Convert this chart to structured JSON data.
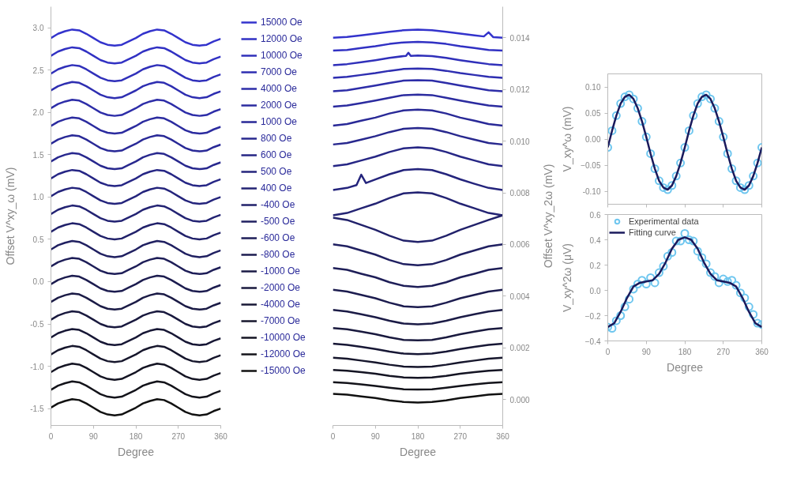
{
  "chart_data": [
    {
      "type": "line",
      "xlabel": "Degree",
      "ylabel": "Offset V^xy_ω (mV)",
      "legend": "right",
      "grid": false,
      "xlim": [
        0,
        360
      ],
      "xticks": [
        0,
        90,
        180,
        270,
        360
      ],
      "ylim": [
        -1.7,
        3.25
      ],
      "yticks": [
        {
          "value": -1.5,
          "label": "-1.5"
        },
        {
          "value": -1,
          "label": "-1.0"
        },
        {
          "value": -0.5,
          "label": "-0.5"
        },
        {
          "value": 0,
          "label": "0.0"
        },
        {
          "value": 0.5,
          "label": "0.5"
        },
        {
          "value": 1,
          "label": "1.0"
        },
        {
          "value": 1.5,
          "label": "1.5"
        },
        {
          "value": 2,
          "label": "2.0"
        },
        {
          "value": 2.5,
          "label": "2.5"
        },
        {
          "value": 3,
          "label": "3.0"
        }
      ],
      "x": [
        0,
        15,
        30,
        45,
        60,
        75,
        90,
        105,
        120,
        135,
        150,
        165,
        180,
        195,
        210,
        225,
        240,
        255,
        270,
        285,
        300,
        315,
        330,
        345,
        360
      ],
      "series": [
        {
          "name": "15000 Oe",
          "color": "#3333cc",
          "values": [
            2.88,
            2.93,
            2.96,
            2.98,
            2.97,
            2.93,
            2.88,
            2.83,
            2.8,
            2.79,
            2.8,
            2.84,
            2.88,
            2.93,
            2.96,
            2.98,
            2.97,
            2.93,
            2.88,
            2.83,
            2.8,
            2.79,
            2.8,
            2.84,
            2.87
          ]
        },
        {
          "name": "12000 Oe",
          "color": "#3131c3",
          "values": [
            2.67,
            2.72,
            2.75,
            2.77,
            2.76,
            2.72,
            2.67,
            2.62,
            2.59,
            2.58,
            2.59,
            2.63,
            2.67,
            2.72,
            2.75,
            2.77,
            2.76,
            2.72,
            2.67,
            2.62,
            2.59,
            2.58,
            2.59,
            2.63,
            2.66
          ]
        },
        {
          "name": "10000 Oe",
          "color": "#3030ba",
          "values": [
            2.46,
            2.51,
            2.54,
            2.56,
            2.55,
            2.51,
            2.46,
            2.41,
            2.38,
            2.37,
            2.38,
            2.42,
            2.46,
            2.51,
            2.54,
            2.56,
            2.55,
            2.51,
            2.46,
            2.41,
            2.38,
            2.37,
            2.38,
            2.42,
            2.45
          ]
        },
        {
          "name": "7000 Oe",
          "color": "#2e2eb1",
          "values": [
            2.26,
            2.31,
            2.34,
            2.36,
            2.35,
            2.31,
            2.26,
            2.21,
            2.18,
            2.17,
            2.18,
            2.22,
            2.26,
            2.31,
            2.34,
            2.36,
            2.35,
            2.31,
            2.26,
            2.21,
            2.18,
            2.17,
            2.18,
            2.22,
            2.25
          ]
        },
        {
          "name": "4000 Oe",
          "color": "#2d2da8",
          "values": [
            2.05,
            2.1,
            2.13,
            2.15,
            2.14,
            2.1,
            2.05,
            2.0,
            1.97,
            1.96,
            1.97,
            2.01,
            2.05,
            2.1,
            2.13,
            2.15,
            2.14,
            2.1,
            2.05,
            2.0,
            1.97,
            1.96,
            1.97,
            2.01,
            2.04
          ]
        },
        {
          "name": "2000 Oe",
          "color": "#2b2b9f",
          "values": [
            1.84,
            1.89,
            1.92,
            1.94,
            1.93,
            1.89,
            1.84,
            1.79,
            1.76,
            1.75,
            1.76,
            1.8,
            1.84,
            1.89,
            1.92,
            1.94,
            1.93,
            1.89,
            1.84,
            1.79,
            1.76,
            1.75,
            1.76,
            1.8,
            1.83
          ]
        },
        {
          "name": "1000 Oe",
          "color": "#292997",
          "values": [
            1.63,
            1.68,
            1.71,
            1.73,
            1.72,
            1.68,
            1.63,
            1.58,
            1.55,
            1.54,
            1.55,
            1.59,
            1.63,
            1.68,
            1.71,
            1.73,
            1.72,
            1.68,
            1.63,
            1.58,
            1.55,
            1.54,
            1.55,
            1.59,
            1.62
          ]
        },
        {
          "name": "800 Oe",
          "color": "#28288e",
          "values": [
            1.42,
            1.47,
            1.5,
            1.52,
            1.51,
            1.47,
            1.42,
            1.37,
            1.34,
            1.33,
            1.34,
            1.38,
            1.42,
            1.47,
            1.5,
            1.52,
            1.51,
            1.47,
            1.42,
            1.37,
            1.34,
            1.33,
            1.34,
            1.38,
            1.41
          ]
        },
        {
          "name": "600 Oe",
          "color": "#262685",
          "values": [
            1.22,
            1.27,
            1.3,
            1.32,
            1.31,
            1.27,
            1.22,
            1.17,
            1.14,
            1.13,
            1.14,
            1.18,
            1.22,
            1.27,
            1.3,
            1.32,
            1.31,
            1.27,
            1.22,
            1.17,
            1.14,
            1.13,
            1.14,
            1.18,
            1.21
          ]
        },
        {
          "name": "500 Oe",
          "color": "#24247c",
          "values": [
            1.01,
            1.06,
            1.09,
            1.11,
            1.1,
            1.06,
            1.01,
            0.96,
            0.93,
            0.92,
            0.93,
            0.97,
            1.01,
            1.06,
            1.09,
            1.11,
            1.1,
            1.06,
            1.01,
            0.96,
            0.93,
            0.92,
            0.93,
            0.97,
            1.0
          ]
        },
        {
          "name": "400 Oe",
          "color": "#232373",
          "values": [
            0.8,
            0.85,
            0.88,
            0.9,
            0.89,
            0.85,
            0.8,
            0.75,
            0.72,
            0.71,
            0.72,
            0.76,
            0.8,
            0.85,
            0.88,
            0.9,
            0.89,
            0.85,
            0.8,
            0.75,
            0.72,
            0.71,
            0.72,
            0.76,
            0.79
          ]
        },
        {
          "name": "-400 Oe",
          "color": "#21216a",
          "values": [
            0.59,
            0.64,
            0.67,
            0.69,
            0.68,
            0.64,
            0.59,
            0.54,
            0.51,
            0.5,
            0.51,
            0.55,
            0.59,
            0.64,
            0.67,
            0.69,
            0.68,
            0.64,
            0.59,
            0.54,
            0.51,
            0.5,
            0.51,
            0.55,
            0.58
          ]
        },
        {
          "name": "-500 Oe",
          "color": "#202061",
          "values": [
            0.38,
            0.43,
            0.46,
            0.48,
            0.47,
            0.43,
            0.38,
            0.33,
            0.3,
            0.29,
            0.3,
            0.34,
            0.38,
            0.43,
            0.46,
            0.48,
            0.47,
            0.43,
            0.38,
            0.33,
            0.3,
            0.29,
            0.3,
            0.34,
            0.37
          ]
        },
        {
          "name": "-600 Oe",
          "color": "#1e1e58",
          "values": [
            0.18,
            0.23,
            0.26,
            0.28,
            0.27,
            0.23,
            0.18,
            0.13,
            0.1,
            0.09,
            0.1,
            0.14,
            0.18,
            0.23,
            0.26,
            0.28,
            0.27,
            0.23,
            0.18,
            0.13,
            0.1,
            0.09,
            0.1,
            0.14,
            0.17
          ]
        },
        {
          "name": "-800 Oe",
          "color": "#1c1c4f",
          "values": [
            -0.03,
            0.02,
            0.05,
            0.07,
            0.06,
            0.02,
            -0.03,
            -0.08,
            -0.11,
            -0.12,
            -0.11,
            -0.07,
            -0.03,
            0.02,
            0.05,
            0.07,
            0.06,
            0.02,
            -0.03,
            -0.08,
            -0.11,
            -0.12,
            -0.11,
            -0.07,
            -0.04
          ]
        },
        {
          "name": "-1000 Oe",
          "color": "#1b1b46",
          "values": [
            -0.24,
            -0.19,
            -0.16,
            -0.14,
            -0.15,
            -0.19,
            -0.24,
            -0.29,
            -0.32,
            -0.33,
            -0.32,
            -0.28,
            -0.24,
            -0.19,
            -0.16,
            -0.14,
            -0.15,
            -0.19,
            -0.24,
            -0.29,
            -0.32,
            -0.33,
            -0.32,
            -0.28,
            -0.25
          ]
        },
        {
          "name": "-2000 Oe",
          "color": "#19193e",
          "values": [
            -0.45,
            -0.4,
            -0.37,
            -0.35,
            -0.36,
            -0.4,
            -0.45,
            -0.5,
            -0.53,
            -0.54,
            -0.53,
            -0.49,
            -0.45,
            -0.4,
            -0.37,
            -0.35,
            -0.36,
            -0.4,
            -0.45,
            -0.5,
            -0.53,
            -0.54,
            -0.53,
            -0.49,
            -0.46
          ]
        },
        {
          "name": "-4000 Oe",
          "color": "#171735",
          "values": [
            -0.66,
            -0.61,
            -0.58,
            -0.56,
            -0.57,
            -0.61,
            -0.66,
            -0.71,
            -0.74,
            -0.75,
            -0.74,
            -0.7,
            -0.66,
            -0.61,
            -0.58,
            -0.56,
            -0.57,
            -0.61,
            -0.66,
            -0.71,
            -0.74,
            -0.75,
            -0.74,
            -0.7,
            -0.67
          ]
        },
        {
          "name": "-7000 Oe",
          "color": "#16162c",
          "values": [
            -0.86,
            -0.81,
            -0.78,
            -0.76,
            -0.77,
            -0.81,
            -0.86,
            -0.91,
            -0.94,
            -0.95,
            -0.94,
            -0.9,
            -0.86,
            -0.81,
            -0.78,
            -0.76,
            -0.77,
            -0.81,
            -0.86,
            -0.91,
            -0.94,
            -0.95,
            -0.94,
            -0.9,
            -0.87
          ]
        },
        {
          "name": "-10000 Oe",
          "color": "#141423",
          "values": [
            -1.07,
            -1.02,
            -0.99,
            -0.97,
            -0.98,
            -1.02,
            -1.07,
            -1.12,
            -1.15,
            -1.16,
            -1.15,
            -1.11,
            -1.07,
            -1.02,
            -0.99,
            -0.97,
            -0.98,
            -1.02,
            -1.07,
            -1.12,
            -1.15,
            -1.16,
            -1.15,
            -1.11,
            -1.08
          ]
        },
        {
          "name": "-12000 Oe",
          "color": "#13131a",
          "values": [
            -1.28,
            -1.23,
            -1.2,
            -1.18,
            -1.19,
            -1.23,
            -1.28,
            -1.33,
            -1.36,
            -1.37,
            -1.36,
            -1.32,
            -1.28,
            -1.23,
            -1.2,
            -1.18,
            -1.19,
            -1.23,
            -1.28,
            -1.33,
            -1.36,
            -1.37,
            -1.36,
            -1.32,
            -1.29
          ]
        },
        {
          "name": "-15000 Oe",
          "color": "#111111",
          "values": [
            -1.49,
            -1.44,
            -1.41,
            -1.39,
            -1.4,
            -1.44,
            -1.49,
            -1.54,
            -1.57,
            -1.58,
            -1.57,
            -1.53,
            -1.49,
            -1.44,
            -1.41,
            -1.39,
            -1.4,
            -1.44,
            -1.49,
            -1.54,
            -1.57,
            -1.58,
            -1.57,
            -1.53,
            -1.5
          ]
        }
      ]
    },
    {
      "type": "line",
      "xlabel": "Degree",
      "y2label": "Offset V^xy_2ω (mV)",
      "legend": false,
      "grid": false,
      "xlim": [
        0,
        360
      ],
      "xticks": [
        0,
        90,
        180,
        270,
        360
      ],
      "y2lim": [
        -0.001,
        0.0152
      ],
      "y2ticks": [
        {
          "value": 0,
          "label": "0.000"
        },
        0.002,
        0.004,
        0.006,
        0.008,
        {
          "value": 0.01,
          "label": "0.010"
        },
        0.012,
        0.014
      ],
      "x": [
        0,
        30,
        60,
        90,
        120,
        150,
        180,
        210,
        240,
        270,
        300,
        330,
        360
      ],
      "series": [
        {
          "axis": "y2",
          "color": "#3333cc",
          "x": [
            0,
            30,
            60,
            90,
            120,
            150,
            180,
            210,
            240,
            270,
            300,
            320,
            330,
            340,
            360
          ],
          "values": [
            0.014,
            0.01403,
            0.01409,
            0.01416,
            0.01423,
            0.01429,
            0.01431,
            0.01429,
            0.01423,
            0.01416,
            0.01409,
            0.01405,
            0.01421,
            0.01402,
            0.014
          ]
        },
        {
          "axis": "y2",
          "color": "#3131c3",
          "values": [
            0.0135,
            0.01353,
            0.0136,
            0.01367,
            0.01376,
            0.01382,
            0.01384,
            0.01382,
            0.01376,
            0.01367,
            0.0136,
            0.01353,
            0.0135
          ]
        },
        {
          "axis": "y2",
          "color": "#3030ba",
          "x": [
            0,
            30,
            60,
            90,
            120,
            150,
            155,
            160,
            165,
            180,
            210,
            240,
            270,
            300,
            330,
            360
          ],
          "values": [
            0.01294,
            0.01298,
            0.01305,
            0.01313,
            0.01322,
            0.01329,
            0.0133,
            0.01342,
            0.0133,
            0.01331,
            0.01329,
            0.01322,
            0.01313,
            0.01305,
            0.01298,
            0.01294
          ]
        },
        {
          "axis": "y2",
          "color": "#2e2eb1",
          "values": [
            0.01245,
            0.01249,
            0.01256,
            0.01263,
            0.01272,
            0.01279,
            0.01281,
            0.01279,
            0.01272,
            0.01263,
            0.01256,
            0.01249,
            0.01245
          ]
        },
        {
          "axis": "y2",
          "color": "#2d2da8",
          "values": [
            0.01193,
            0.01197,
            0.01206,
            0.01215,
            0.01225,
            0.01234,
            0.01236,
            0.01234,
            0.01225,
            0.01215,
            0.01206,
            0.01197,
            0.01193
          ]
        },
        {
          "axis": "y2",
          "color": "#2b2b9f",
          "values": [
            0.01133,
            0.01138,
            0.01147,
            0.01157,
            0.01168,
            0.01178,
            0.0118,
            0.01178,
            0.01168,
            0.01157,
            0.01147,
            0.01138,
            0.01133
          ]
        },
        {
          "axis": "y2",
          "color": "#292997",
          "values": [
            0.0106,
            0.01066,
            0.01079,
            0.01091,
            0.01107,
            0.01119,
            0.01122,
            0.01119,
            0.01107,
            0.01091,
            0.01079,
            0.01066,
            0.0106
          ]
        },
        {
          "axis": "y2",
          "color": "#28288e",
          "values": [
            0.00987,
            0.00993,
            0.01006,
            0.01019,
            0.01035,
            0.01048,
            0.01051,
            0.01048,
            0.01035,
            0.01019,
            0.01006,
            0.00993,
            0.00987
          ]
        },
        {
          "axis": "y2",
          "color": "#262685",
          "values": [
            0.00903,
            0.0091,
            0.00925,
            0.0094,
            0.00958,
            0.00972,
            0.00976,
            0.00972,
            0.00958,
            0.0094,
            0.00925,
            0.0091,
            0.00903
          ]
        },
        {
          "axis": "y2",
          "color": "#24247c",
          "x": [
            0,
            30,
            50,
            60,
            70,
            90,
            120,
            150,
            180,
            210,
            240,
            270,
            300,
            330,
            360
          ],
          "values": [
            0.00811,
            0.00819,
            0.0083,
            0.0087,
            0.00838,
            0.00852,
            0.00872,
            0.00888,
            0.00892,
            0.00888,
            0.00872,
            0.00852,
            0.00835,
            0.00819,
            0.00811
          ]
        },
        {
          "axis": "y2",
          "color": "#232373",
          "values": [
            0.00713,
            0.00722,
            0.0074,
            0.00758,
            0.0078,
            0.00798,
            0.00802,
            0.00798,
            0.0078,
            0.00758,
            0.0074,
            0.00722,
            0.00713
          ]
        },
        {
          "axis": "y2",
          "color": "#21216a",
          "values": [
            0.00704,
            0.00695,
            0.00676,
            0.00657,
            0.00634,
            0.00615,
            0.0061,
            0.00615,
            0.00634,
            0.00657,
            0.00676,
            0.00695,
            0.00713
          ]
        },
        {
          "axis": "y2",
          "color": "#202061",
          "values": [
            0.00601,
            0.00593,
            0.00577,
            0.00561,
            0.0054,
            0.00524,
            0.0052,
            0.00524,
            0.0054,
            0.00561,
            0.00577,
            0.00593,
            0.00601
          ]
        },
        {
          "axis": "y2",
          "color": "#1e1e58",
          "values": [
            0.00509,
            0.00502,
            0.00487,
            0.00473,
            0.00454,
            0.0044,
            0.00436,
            0.0044,
            0.00454,
            0.00473,
            0.00487,
            0.00502,
            0.00509
          ]
        },
        {
          "axis": "y2",
          "color": "#1c1c4f",
          "values": [
            0.00425,
            0.00418,
            0.00405,
            0.00392,
            0.00375,
            0.00361,
            0.00358,
            0.00361,
            0.00375,
            0.00392,
            0.00405,
            0.00418,
            0.00425
          ]
        },
        {
          "axis": "y2",
          "color": "#1b1b46",
          "values": [
            0.00347,
            0.00341,
            0.0033,
            0.00319,
            0.00305,
            0.00294,
            0.00291,
            0.00294,
            0.00305,
            0.00319,
            0.0033,
            0.00341,
            0.00347
          ]
        },
        {
          "axis": "y2",
          "color": "#19193e",
          "values": [
            0.00277,
            0.00272,
            0.00263,
            0.00253,
            0.00241,
            0.00231,
            0.00229,
            0.00231,
            0.00241,
            0.00253,
            0.00263,
            0.00272,
            0.00277
          ]
        },
        {
          "axis": "y2",
          "color": "#171735",
          "values": [
            0.00216,
            0.00212,
            0.00204,
            0.00196,
            0.00186,
            0.00178,
            0.00176,
            0.00178,
            0.00186,
            0.00196,
            0.00204,
            0.00212,
            0.00216
          ]
        },
        {
          "axis": "y2",
          "color": "#16162c",
          "values": [
            0.00162,
            0.00158,
            0.00151,
            0.00144,
            0.00135,
            0.00128,
            0.00126,
            0.00128,
            0.00135,
            0.00144,
            0.00151,
            0.00158,
            0.00162
          ]
        },
        {
          "axis": "y2",
          "color": "#141423",
          "values": [
            0.00115,
            0.00112,
            0.00106,
            0.001,
            0.00092,
            0.00086,
            0.00084,
            0.00086,
            0.00092,
            0.001,
            0.00106,
            0.00112,
            0.00115
          ]
        },
        {
          "axis": "y2",
          "color": "#13131a",
          "values": [
            0.00067,
            0.00064,
            0.00059,
            0.00053,
            0.00046,
            0.0004,
            0.00039,
            0.0004,
            0.00046,
            0.00053,
            0.00059,
            0.00064,
            0.00067
          ]
        },
        {
          "axis": "y2",
          "color": "#111111",
          "values": [
            0.00022,
            0.00019,
            0.00012,
            6e-05,
            -3e-05,
            -9e-05,
            -0.00011,
            -9e-05,
            -3e-05,
            6e-05,
            0.00012,
            0.00019,
            0.00022
          ]
        }
      ]
    },
    {
      "type": "line",
      "ylabel": "V_xy^ω (mV)",
      "legend": false,
      "grid": false,
      "tick_labels": "y",
      "xlim": [
        0,
        360
      ],
      "xticks": [
        0,
        90,
        180,
        270,
        360
      ],
      "ylim": [
        -0.125,
        0.125
      ],
      "yticks": [
        {
          "value": -0.1,
          "label": "-0.10"
        },
        -0.05,
        {
          "value": 0,
          "label": "0.00"
        },
        0.05,
        {
          "value": 0.1,
          "label": "0.10"
        }
      ],
      "x": [
        0,
        10,
        20,
        30,
        40,
        50,
        60,
        70,
        80,
        90,
        100,
        110,
        120,
        130,
        140,
        150,
        160,
        170,
        180,
        190,
        200,
        210,
        220,
        230,
        240,
        250,
        260,
        270,
        280,
        290,
        300,
        310,
        320,
        330,
        340,
        350,
        360
      ],
      "series": [
        {
          "type": "scatter",
          "marker": "circle",
          "color": "#6ec6ef",
          "values": [
            -0.016,
            0.016,
            0.045,
            0.068,
            0.081,
            0.085,
            0.077,
            0.059,
            0.034,
            0.004,
            -0.028,
            -0.057,
            -0.08,
            -0.093,
            -0.097,
            -0.089,
            -0.071,
            -0.046,
            -0.016,
            0.016,
            0.045,
            0.068,
            0.081,
            0.085,
            0.077,
            0.059,
            0.034,
            0.004,
            -0.028,
            -0.057,
            -0.08,
            -0.093,
            -0.097,
            -0.089,
            -0.071,
            -0.046,
            -0.016
          ]
        },
        {
          "type": "line",
          "color": "#1a1a5c",
          "values": [
            -0.016,
            0.016,
            0.045,
            0.068,
            0.081,
            0.085,
            0.077,
            0.059,
            0.034,
            0.004,
            -0.028,
            -0.057,
            -0.08,
            -0.093,
            -0.097,
            -0.089,
            -0.071,
            -0.046,
            -0.016,
            0.016,
            0.045,
            0.068,
            0.081,
            0.085,
            0.077,
            0.059,
            0.034,
            0.004,
            -0.028,
            -0.057,
            -0.08,
            -0.093,
            -0.097,
            -0.089,
            -0.071,
            -0.046,
            -0.016
          ]
        }
      ]
    },
    {
      "type": "line",
      "xlabel": "Degree",
      "ylabel": "V_xy^2ω (μV)",
      "legend": "top left",
      "grid": false,
      "xlim": [
        0,
        360
      ],
      "xticks": [
        0,
        90,
        180,
        270,
        360
      ],
      "ylim": [
        -0.4,
        0.6
      ],
      "yticks": [
        -0.4,
        -0.2,
        {
          "value": 0,
          "label": "0.0"
        },
        0.2,
        0.4,
        0.6
      ],
      "x": [
        0,
        10,
        20,
        30,
        40,
        50,
        60,
        70,
        80,
        90,
        100,
        110,
        120,
        130,
        140,
        150,
        160,
        170,
        180,
        190,
        200,
        210,
        220,
        230,
        240,
        250,
        260,
        270,
        280,
        290,
        300,
        310,
        320,
        330,
        340,
        350,
        360
      ],
      "series": [
        {
          "name": "Experimental data",
          "type": "scatter",
          "marker": "circle",
          "color": "#6ec6ef",
          "values": [
            -0.29,
            -0.3,
            -0.24,
            -0.2,
            -0.13,
            -0.07,
            0.01,
            0.05,
            0.08,
            0.05,
            0.1,
            0.06,
            0.14,
            0.19,
            0.27,
            0.3,
            0.39,
            0.39,
            0.45,
            0.4,
            0.39,
            0.31,
            0.26,
            0.21,
            0.14,
            0.11,
            0.06,
            0.09,
            0.07,
            0.08,
            0.04,
            -0.02,
            -0.06,
            -0.13,
            -0.19,
            -0.26,
            -0.27
          ]
        },
        {
          "name": "Fitting curve",
          "type": "line",
          "color": "#1a1a5c",
          "x": [
            0,
            15,
            30,
            45,
            60,
            75,
            90,
            105,
            120,
            135,
            150,
            165,
            180,
            195,
            210,
            225,
            240,
            255,
            270,
            285,
            300,
            315,
            330,
            345,
            360
          ],
          "values": [
            -0.29,
            -0.26,
            -0.17,
            -0.06,
            0.03,
            0.06,
            0.07,
            0.08,
            0.13,
            0.22,
            0.33,
            0.4,
            0.42,
            0.4,
            0.33,
            0.22,
            0.13,
            0.08,
            0.07,
            0.06,
            0.03,
            -0.06,
            -0.17,
            -0.26,
            -0.29
          ]
        }
      ]
    }
  ]
}
